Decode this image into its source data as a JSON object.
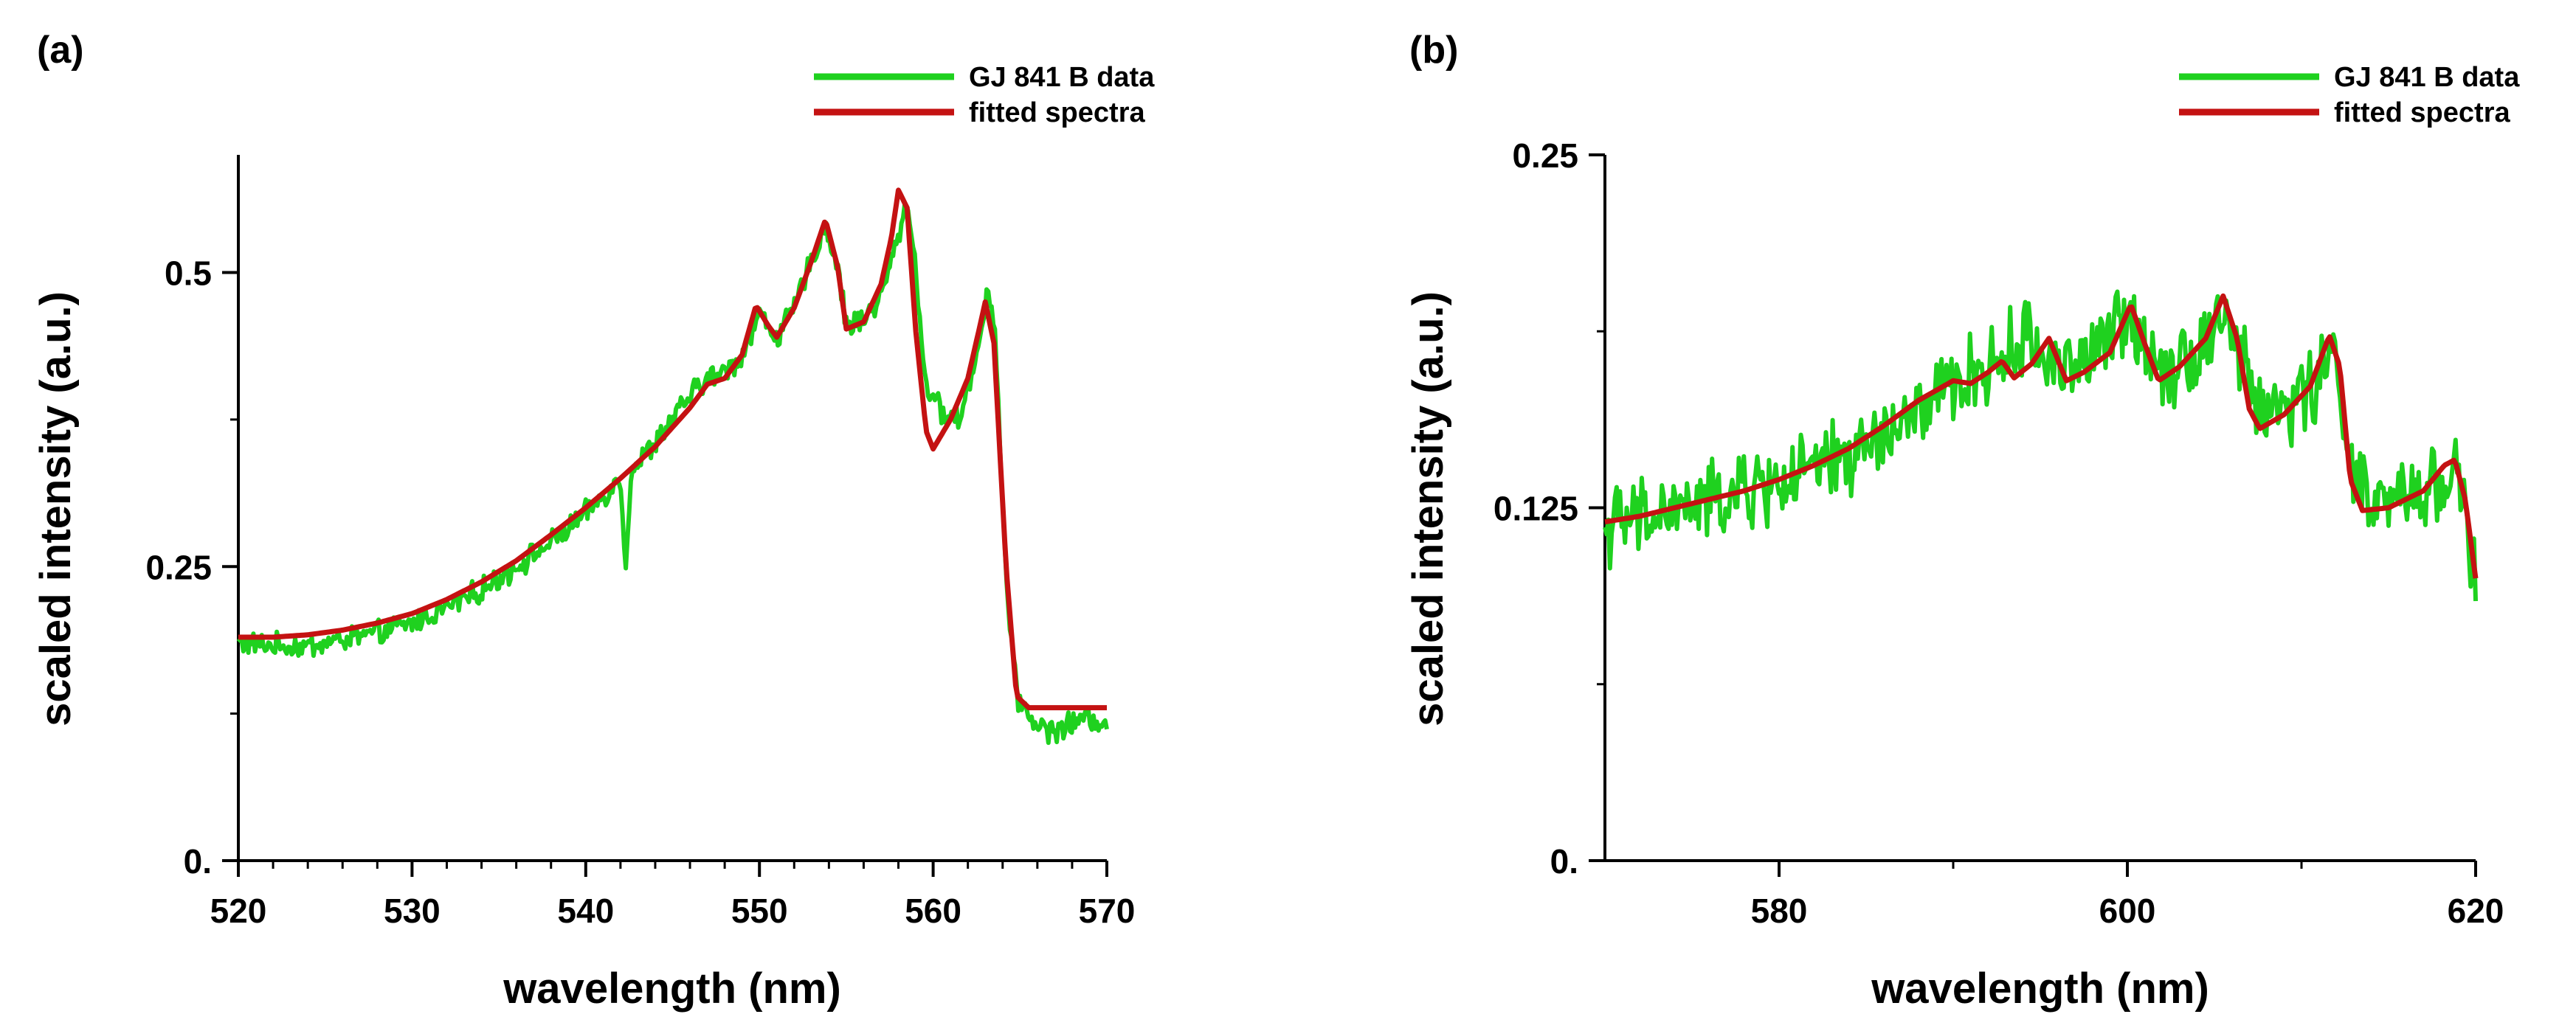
{
  "colors": {
    "data": "#1fd11f",
    "fit": "#c41212",
    "axis": "#000000"
  },
  "chart_data": [
    {
      "panel_label": "(a)",
      "type": "line",
      "title": "",
      "xlabel": "wavelength (nm)",
      "ylabel": "scaled intensity (a.u.)",
      "xlim": [
        520,
        570
      ],
      "ylim": [
        0,
        0.6
      ],
      "xticks": [
        520,
        530,
        540,
        550,
        560,
        570
      ],
      "xtick_labels": [
        "520",
        "530",
        "540",
        "550",
        "560",
        "570"
      ],
      "yticks": [
        0,
        0.25,
        0.5
      ],
      "ytick_labels": [
        "0.",
        "0.25",
        "0.5"
      ],
      "legend": [
        "GJ 841 B data",
        "fitted spectra"
      ],
      "legend_position": "top-right",
      "series": [
        {
          "name": "GJ 841 B data",
          "noise": 0.008,
          "anchors": [
            [
              520,
              0.185
            ],
            [
              522,
              0.183
            ],
            [
              524,
              0.182
            ],
            [
              526,
              0.188
            ],
            [
              528,
              0.193
            ],
            [
              530,
              0.202
            ],
            [
              532,
              0.215
            ],
            [
              534,
              0.23
            ],
            [
              536,
              0.25
            ],
            [
              538,
              0.27
            ],
            [
              540,
              0.295
            ],
            [
              541,
              0.31
            ],
            [
              542,
              0.325
            ],
            [
              542.3,
              0.25
            ],
            [
              542.6,
              0.33
            ],
            [
              544,
              0.355
            ],
            [
              545,
              0.375
            ],
            [
              546,
              0.395
            ],
            [
              547,
              0.41
            ],
            [
              548,
              0.415
            ],
            [
              549,
              0.43
            ],
            [
              550,
              0.465
            ],
            [
              551,
              0.445
            ],
            [
              552,
              0.47
            ],
            [
              553,
              0.51
            ],
            [
              553.8,
              0.54
            ],
            [
              554.5,
              0.505
            ],
            [
              555,
              0.455
            ],
            [
              556,
              0.46
            ],
            [
              557,
              0.48
            ],
            [
              558,
              0.53
            ],
            [
              558.5,
              0.56
            ],
            [
              559,
              0.505
            ],
            [
              559.5,
              0.41
            ],
            [
              560.5,
              0.38
            ],
            [
              561.5,
              0.375
            ],
            [
              562.5,
              0.43
            ],
            [
              563.2,
              0.49
            ],
            [
              563.6,
              0.44
            ],
            [
              564.2,
              0.24
            ],
            [
              564.8,
              0.14
            ],
            [
              566,
              0.115
            ],
            [
              567,
              0.11
            ],
            [
              568,
              0.117
            ],
            [
              569,
              0.121
            ],
            [
              570,
              0.118
            ]
          ]
        },
        {
          "name": "fitted spectra",
          "anchors": [
            [
              520,
              0.19
            ],
            [
              522,
              0.19
            ],
            [
              524,
              0.192
            ],
            [
              526,
              0.196
            ],
            [
              528,
              0.202
            ],
            [
              530,
              0.21
            ],
            [
              532,
              0.222
            ],
            [
              534,
              0.237
            ],
            [
              536,
              0.255
            ],
            [
              538,
              0.277
            ],
            [
              540,
              0.3
            ],
            [
              542,
              0.325
            ],
            [
              544,
              0.352
            ],
            [
              546,
              0.385
            ],
            [
              547,
              0.405
            ],
            [
              548,
              0.41
            ],
            [
              549,
              0.43
            ],
            [
              549.8,
              0.472
            ],
            [
              550.5,
              0.455
            ],
            [
              551,
              0.445
            ],
            [
              552,
              0.47
            ],
            [
              553,
              0.51
            ],
            [
              553.8,
              0.545
            ],
            [
              554.5,
              0.505
            ],
            [
              555,
              0.452
            ],
            [
              556,
              0.458
            ],
            [
              557,
              0.49
            ],
            [
              557.6,
              0.53
            ],
            [
              558,
              0.57
            ],
            [
              558.5,
              0.555
            ],
            [
              559,
              0.45
            ],
            [
              559.6,
              0.365
            ],
            [
              560,
              0.35
            ],
            [
              561,
              0.375
            ],
            [
              562,
              0.41
            ],
            [
              562.7,
              0.455
            ],
            [
              563,
              0.475
            ],
            [
              563.5,
              0.44
            ],
            [
              564.2,
              0.25
            ],
            [
              564.8,
              0.14
            ],
            [
              565.5,
              0.13
            ],
            [
              570,
              0.13
            ]
          ]
        }
      ]
    },
    {
      "panel_label": "(b)",
      "type": "line",
      "title": "",
      "xlabel": "wavelength (nm)",
      "ylabel": "scaled intensity (a.u.)",
      "xlim": [
        570,
        620
      ],
      "ylim": [
        0,
        0.25
      ],
      "xticks": [
        580,
        600,
        620
      ],
      "xtick_labels": [
        "580",
        "600",
        "620"
      ],
      "yticks": [
        0,
        0.125,
        0.25
      ],
      "ytick_labels": [
        "0.",
        "0.125",
        "0.25"
      ],
      "legend": [
        "GJ 841 B data",
        "fitted spectra"
      ],
      "legend_position": "top-right",
      "series": [
        {
          "name": "GJ 841 B data",
          "noise": 0.011,
          "anchors": [
            [
              570,
              0.118
            ],
            [
              572,
              0.121
            ],
            [
              574,
              0.124
            ],
            [
              576,
              0.127
            ],
            [
              578,
              0.13
            ],
            [
              580,
              0.134
            ],
            [
              582,
              0.138
            ],
            [
              584,
              0.143
            ],
            [
              586,
              0.15
            ],
            [
              588,
              0.158
            ],
            [
              590,
              0.168
            ],
            [
              592,
              0.175
            ],
            [
              593,
              0.178
            ],
            [
              594,
              0.186
            ],
            [
              595,
              0.18
            ],
            [
              596,
              0.176
            ],
            [
              598,
              0.178
            ],
            [
              600,
              0.193
            ],
            [
              601,
              0.185
            ],
            [
              602,
              0.175
            ],
            [
              604,
              0.18
            ],
            [
              605.5,
              0.195
            ],
            [
              606.5,
              0.178
            ],
            [
              607.5,
              0.16
            ],
            [
              609,
              0.16
            ],
            [
              611,
              0.17
            ],
            [
              612,
              0.18
            ],
            [
              613,
              0.135
            ],
            [
              614,
              0.125
            ],
            [
              616,
              0.128
            ],
            [
              618,
              0.135
            ],
            [
              619,
              0.14
            ],
            [
              620,
              0.095
            ]
          ]
        },
        {
          "name": "fitted spectra",
          "anchors": [
            [
              570,
              0.12
            ],
            [
              572,
              0.122
            ],
            [
              574,
              0.125
            ],
            [
              576,
              0.128
            ],
            [
              578,
              0.131
            ],
            [
              580,
              0.135
            ],
            [
              582,
              0.14
            ],
            [
              584,
              0.146
            ],
            [
              586,
              0.154
            ],
            [
              588,
              0.163
            ],
            [
              590,
              0.17
            ],
            [
              591,
              0.169
            ],
            [
              592,
              0.173
            ],
            [
              592.8,
              0.177
            ],
            [
              593.5,
              0.171
            ],
            [
              594.5,
              0.176
            ],
            [
              595.5,
              0.185
            ],
            [
              596.5,
              0.17
            ],
            [
              597.5,
              0.173
            ],
            [
              599,
              0.18
            ],
            [
              600.2,
              0.197
            ],
            [
              601,
              0.183
            ],
            [
              601.8,
              0.17
            ],
            [
              603,
              0.175
            ],
            [
              604.5,
              0.185
            ],
            [
              605.5,
              0.2
            ],
            [
              606.3,
              0.185
            ],
            [
              607,
              0.16
            ],
            [
              607.6,
              0.153
            ],
            [
              609,
              0.158
            ],
            [
              610.5,
              0.168
            ],
            [
              611.6,
              0.186
            ],
            [
              612.2,
              0.175
            ],
            [
              612.8,
              0.135
            ],
            [
              613.5,
              0.124
            ],
            [
              615,
              0.125
            ],
            [
              617,
              0.131
            ],
            [
              618.2,
              0.14
            ],
            [
              618.8,
              0.142
            ],
            [
              619.4,
              0.128
            ],
            [
              620,
              0.1
            ]
          ]
        }
      ]
    }
  ]
}
